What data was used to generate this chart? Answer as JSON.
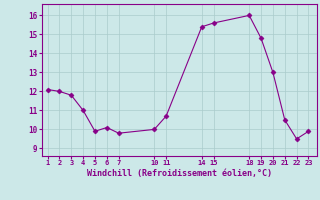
{
  "x": [
    1,
    2,
    3,
    4,
    5,
    6,
    7,
    10,
    11,
    14,
    15,
    18,
    19,
    20,
    21,
    22,
    23
  ],
  "y": [
    12.1,
    12.0,
    11.8,
    11.0,
    9.9,
    10.1,
    9.8,
    10.0,
    10.7,
    15.4,
    15.6,
    16.0,
    14.8,
    13.0,
    10.5,
    9.5,
    9.9
  ],
  "xticks": [
    1,
    2,
    3,
    4,
    5,
    6,
    7,
    10,
    11,
    14,
    15,
    18,
    19,
    20,
    21,
    22,
    23
  ],
  "xtick_labels": [
    "1",
    "2",
    "3",
    "4",
    "5",
    "6",
    "7",
    "10",
    "11",
    "14",
    "15",
    "18",
    "19",
    "20",
    "21",
    "22",
    "23"
  ],
  "yticks": [
    9,
    10,
    11,
    12,
    13,
    14,
    15,
    16
  ],
  "ylim": [
    8.6,
    16.6
  ],
  "xlim": [
    0.5,
    23.7
  ],
  "xlabel": "Windchill (Refroidissement éolien,°C)",
  "line_color": "#880088",
  "marker": "D",
  "marker_size": 2.5,
  "bg_color": "#cce8e8",
  "grid_color": "#aacccc",
  "xlabel_color": "#880088",
  "tick_color": "#880088"
}
